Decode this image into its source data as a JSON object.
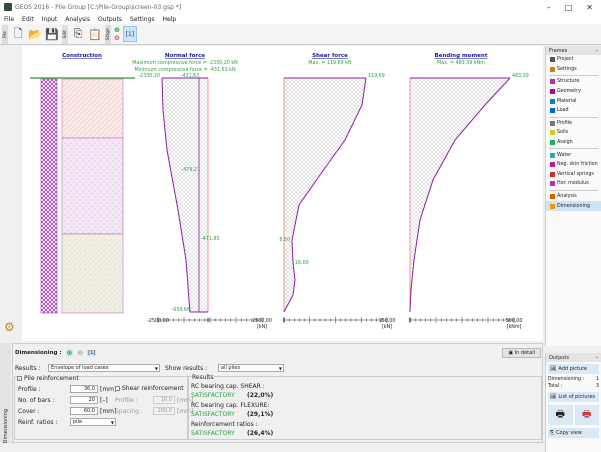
{
  "window": {
    "title": "GEO5 2016 - Pile Group [C:\\Pile-Group\\screen-03.gsp *]"
  },
  "menu": [
    "File",
    "Edit",
    "Input",
    "Analysis",
    "Outputs",
    "Settings",
    "Help"
  ],
  "toolbar": {
    "group_file": "File",
    "group_edit": "Edit",
    "group_stage": "Stage",
    "icons": [
      "new-file-icon",
      "open-file-icon",
      "save-icon",
      "copy-icon",
      "paste-icon",
      "add-stage-icon",
      "remove-stage-icon",
      "stage-icon"
    ],
    "stage_label": "[1]"
  },
  "drawing": {
    "construction": {
      "title": "Construction"
    },
    "normal": {
      "title": "Normal force",
      "line1": "Maximum compressive force = -2330,20 kN",
      "line2": "Minimum compressive force = -431,63 kN",
      "labels": {
        "top_left": "-2330,20",
        "top_inner": "-431,63",
        "mid1": "-479,27",
        "mid2": "-471,85",
        "bottom": "-634,66"
      },
      "ticks": {
        "min": "-2500,00",
        "zero": "0",
        "max": "2500,00",
        "unit": "[kN]"
      }
    },
    "shear": {
      "title": "Shear force",
      "line1": "Max. = 119,69 kN",
      "labels": {
        "top": "119,69",
        "mid1": "8,50",
        "mid2": "16,00"
      },
      "ticks": {
        "zero": "0",
        "max": "150,00",
        "unit": "[kN]"
      }
    },
    "moment": {
      "title": "Bending moment",
      "line1": "Max. = 483,39 kNm",
      "labels": {
        "top": "483,39"
      },
      "ticks": {
        "zero": "0",
        "max": "500,00",
        "unit": "[kNm]"
      }
    },
    "colors": {
      "curve": "#8b1fa0",
      "axis_red": "#f08080",
      "text_green": "#2ea043",
      "title_blue": "#1a1aa0"
    }
  },
  "frames": {
    "title": "Frames",
    "collapse": "–",
    "items": [
      {
        "label": "Project",
        "group": 0
      },
      {
        "label": "Settings",
        "group": 0
      },
      {
        "label": "Structure",
        "group": 1
      },
      {
        "label": "Geometry",
        "group": 1
      },
      {
        "label": "Material",
        "group": 1
      },
      {
        "label": "Load",
        "group": 1
      },
      {
        "label": "Profile",
        "group": 2
      },
      {
        "label": "Soils",
        "group": 2
      },
      {
        "label": "Assign",
        "group": 2
      },
      {
        "label": "Water",
        "group": 3
      },
      {
        "label": "Neg. skin friction",
        "group": 3
      },
      {
        "label": "Vertical springs",
        "group": 3
      },
      {
        "label": "Hor. modulus",
        "group": 3
      },
      {
        "label": "Analysis",
        "group": 4
      },
      {
        "label": "Dimensioning",
        "group": 4,
        "selected": true
      }
    ]
  },
  "outputs": {
    "title": "Outputs",
    "collapse": "–",
    "add_picture": "Add picture",
    "dimensioning_label": "Dimensioning :",
    "dimensioning_count": "1",
    "total_label": "Total :",
    "total_count": "3",
    "list_pictures": "List of pictures",
    "copy_view": "Copy view"
  },
  "bottom": {
    "tab": "Dimensioning",
    "header": "Dimensioning :",
    "stage_label": "[1]",
    "in_detail": "In detail",
    "results_label": "Results :",
    "results_value": "Envelope of load cases",
    "show_label": "Show results :",
    "show_value": "all piles",
    "pile_reinf": {
      "label": "Pile reinforcement",
      "checked": true,
      "profile_label": "Profile :",
      "profile": "36,0",
      "profile_unit": "[mm]",
      "bars_label": "No. of bars :",
      "bars": "20",
      "bars_unit": "[–]",
      "cover_label": "Cover :",
      "cover": "60,0",
      "cover_unit": "[mm]",
      "ratios_label": "Reinf. ratios :",
      "ratios_value": "pile"
    },
    "shear_reinf": {
      "label": "Shear reinforcement",
      "checked": false,
      "profile_label": "Profile :",
      "profile": "16,0",
      "profile_unit": "[mm]",
      "spacing_label": "Spacing :",
      "spacing": "200,0",
      "spacing_unit": "[mm]"
    },
    "results": {
      "title": "Results",
      "items": [
        {
          "label": "RC bearing cap. SHEAR :",
          "status": "SATISFACTORY",
          "value": "(22,0%)"
        },
        {
          "label": "RC bearing cap. FLEXURE:",
          "status": "SATISFACTORY",
          "value": "(29,1%)"
        },
        {
          "label": "Reinforcement ratios :",
          "status": "SATISFACTORY",
          "value": "(26,4%)"
        }
      ]
    }
  }
}
